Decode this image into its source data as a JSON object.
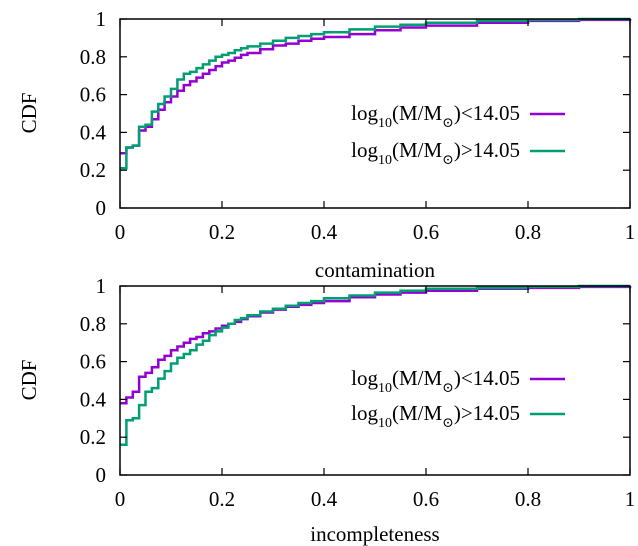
{
  "colors": {
    "low": "#9400d3",
    "high": "#009e73",
    "axis": "#000000"
  },
  "chart_data": [
    {
      "type": "line",
      "step": "post",
      "xlabel": "contamination",
      "ylabel": "CDF",
      "xlim": [
        0,
        1
      ],
      "ylim": [
        0,
        1
      ],
      "xticks": [
        "0",
        "0.2",
        "0.4",
        "0.6",
        "0.8",
        "1"
      ],
      "yticks": [
        "0",
        "0.2",
        "0.4",
        "0.6",
        "0.8",
        "1"
      ],
      "grid": false,
      "legend_position": "right",
      "series": [
        {
          "name": "log10(M/M⊙)<14.05",
          "legend_parts": [
            "log",
            "10",
            "(M/M",
            "⊙",
            ")<14.05"
          ],
          "color_key": "low",
          "x": [
            0,
            0.0125,
            0.025,
            0.0375,
            0.05,
            0.0625,
            0.075,
            0.0875,
            0.1,
            0.1125,
            0.125,
            0.1375,
            0.15,
            0.1625,
            0.175,
            0.1875,
            0.2,
            0.2125,
            0.225,
            0.2375,
            0.25,
            0.275,
            0.3,
            0.325,
            0.35,
            0.375,
            0.4,
            0.45,
            0.5,
            0.55,
            0.6,
            0.7,
            0.8,
            0.9,
            1.0
          ],
          "y": [
            0.29,
            0.32,
            0.33,
            0.41,
            0.43,
            0.47,
            0.52,
            0.56,
            0.59,
            0.62,
            0.65,
            0.67,
            0.69,
            0.71,
            0.73,
            0.75,
            0.77,
            0.78,
            0.795,
            0.81,
            0.82,
            0.84,
            0.86,
            0.87,
            0.885,
            0.895,
            0.905,
            0.92,
            0.94,
            0.955,
            0.965,
            0.98,
            0.99,
            0.995,
            1.0
          ]
        },
        {
          "name": "log10(M/M⊙)>14.05",
          "legend_parts": [
            "log",
            "10",
            "(M/M",
            "⊙",
            ")>14.05"
          ],
          "color_key": "high",
          "x": [
            0,
            0.0125,
            0.025,
            0.0375,
            0.05,
            0.0625,
            0.075,
            0.0875,
            0.1,
            0.1125,
            0.125,
            0.1375,
            0.15,
            0.1625,
            0.175,
            0.1875,
            0.2,
            0.2125,
            0.225,
            0.2375,
            0.25,
            0.275,
            0.3,
            0.325,
            0.35,
            0.375,
            0.4,
            0.45,
            0.5,
            0.55,
            0.6,
            0.7,
            0.8,
            0.9,
            1.0
          ],
          "y": [
            0.21,
            0.32,
            0.33,
            0.43,
            0.44,
            0.51,
            0.55,
            0.59,
            0.63,
            0.68,
            0.71,
            0.72,
            0.74,
            0.76,
            0.78,
            0.8,
            0.81,
            0.82,
            0.835,
            0.845,
            0.855,
            0.87,
            0.885,
            0.9,
            0.91,
            0.92,
            0.93,
            0.945,
            0.96,
            0.97,
            0.98,
            0.99,
            0.995,
            1.0,
            1.0
          ]
        }
      ]
    },
    {
      "type": "line",
      "step": "post",
      "xlabel": "incompleteness",
      "ylabel": "CDF",
      "xlim": [
        0,
        1
      ],
      "ylim": [
        0,
        1
      ],
      "xticks": [
        "0",
        "0.2",
        "0.4",
        "0.6",
        "0.8",
        "1"
      ],
      "yticks": [
        "0",
        "0.2",
        "0.4",
        "0.6",
        "0.8",
        "1"
      ],
      "grid": false,
      "legend_position": "right",
      "series": [
        {
          "name": "log10(M/M⊙)<14.05",
          "legend_parts": [
            "log",
            "10",
            "(M/M",
            "⊙",
            ")<14.05"
          ],
          "color_key": "low",
          "x": [
            0,
            0.0125,
            0.025,
            0.0375,
            0.05,
            0.0625,
            0.075,
            0.0875,
            0.1,
            0.1125,
            0.125,
            0.1375,
            0.15,
            0.1625,
            0.175,
            0.1875,
            0.2,
            0.2125,
            0.225,
            0.2375,
            0.25,
            0.275,
            0.3,
            0.325,
            0.35,
            0.375,
            0.4,
            0.45,
            0.5,
            0.55,
            0.6,
            0.7,
            0.8,
            0.9,
            1.0
          ],
          "y": [
            0.38,
            0.41,
            0.44,
            0.52,
            0.54,
            0.57,
            0.61,
            0.63,
            0.66,
            0.68,
            0.7,
            0.72,
            0.73,
            0.75,
            0.76,
            0.775,
            0.79,
            0.8,
            0.81,
            0.825,
            0.84,
            0.86,
            0.875,
            0.89,
            0.9,
            0.91,
            0.92,
            0.94,
            0.955,
            0.965,
            0.975,
            0.985,
            0.99,
            0.995,
            1.0
          ]
        },
        {
          "name": "log10(M/M⊙)>14.05",
          "legend_parts": [
            "log",
            "10",
            "(M/M",
            "⊙",
            ")>14.05"
          ],
          "color_key": "high",
          "x": [
            0,
            0.0125,
            0.025,
            0.0375,
            0.05,
            0.0625,
            0.075,
            0.0875,
            0.1,
            0.1125,
            0.125,
            0.1375,
            0.15,
            0.1625,
            0.175,
            0.1875,
            0.2,
            0.2125,
            0.225,
            0.2375,
            0.25,
            0.275,
            0.3,
            0.325,
            0.35,
            0.375,
            0.4,
            0.45,
            0.5,
            0.55,
            0.6,
            0.7,
            0.8,
            0.9,
            1.0
          ],
          "y": [
            0.16,
            0.29,
            0.3,
            0.37,
            0.44,
            0.46,
            0.51,
            0.55,
            0.59,
            0.62,
            0.64,
            0.66,
            0.69,
            0.71,
            0.74,
            0.76,
            0.78,
            0.8,
            0.82,
            0.83,
            0.845,
            0.865,
            0.88,
            0.895,
            0.91,
            0.92,
            0.935,
            0.95,
            0.965,
            0.975,
            0.985,
            0.99,
            0.995,
            1.0,
            1.0
          ]
        }
      ]
    }
  ]
}
